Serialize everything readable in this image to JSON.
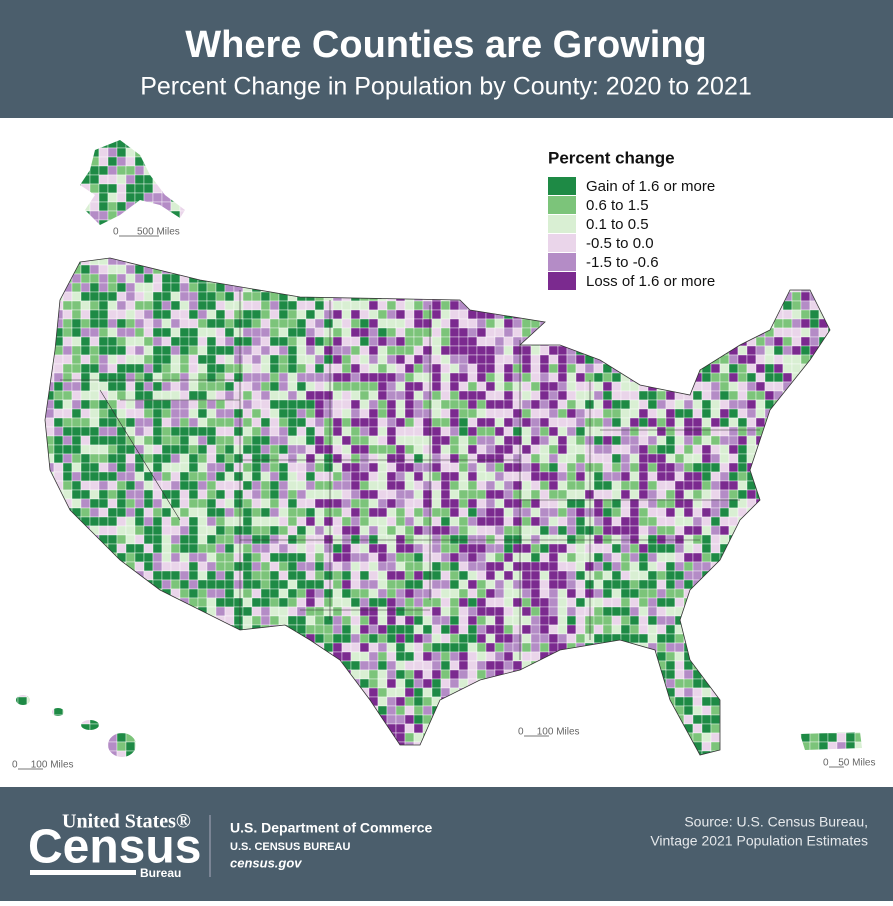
{
  "header": {
    "title": "Where Counties are Growing",
    "subtitle": "Percent Change in Population by County: 2020 to 2021"
  },
  "legend": {
    "title": "Percent change",
    "items": [
      {
        "label": "Gain of 1.6 or more",
        "color": "#1e8a45"
      },
      {
        "label": "0.6 to 1.5",
        "color": "#7cc47a"
      },
      {
        "label": "0.1 to 0.5",
        "color": "#d9efd3"
      },
      {
        "label": "-0.5 to 0.0",
        "color": "#ead5ea"
      },
      {
        "label": "-1.5 to -0.6",
        "color": "#b48cc6"
      },
      {
        "label": "Loss of 1.6 or more",
        "color": "#7b2a8f"
      }
    ]
  },
  "scale_bars": [
    {
      "start": "0",
      "end": "500 Miles"
    },
    {
      "start": "0",
      "end": "100 Miles"
    },
    {
      "start": "0",
      "end": "100 Miles"
    },
    {
      "start": "0",
      "end": "50 Miles"
    }
  ],
  "footer": {
    "logo": {
      "top": "United States®",
      "main": "Census",
      "bottom": "Bureau"
    },
    "department": "U.S. Department of Commerce",
    "bureau": "U.S. CENSUS BUREAU",
    "website": "census.gov",
    "source": [
      "Source: U.S. Census Bureau,",
      "Vintage 2021 Population Estimates"
    ]
  }
}
